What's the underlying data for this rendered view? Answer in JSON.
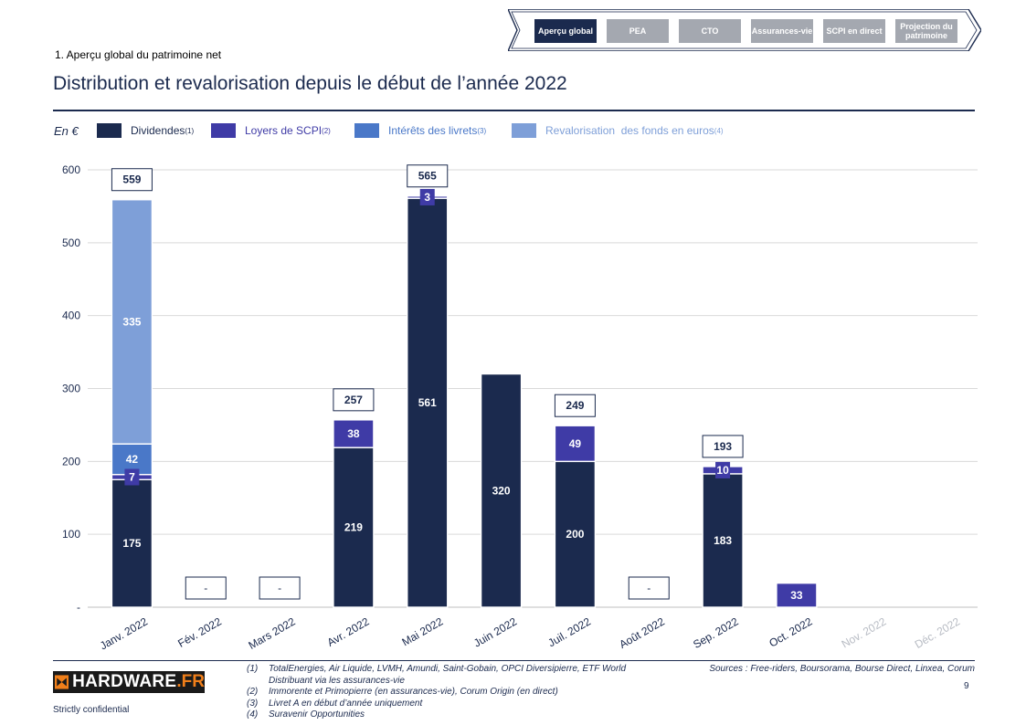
{
  "nav": {
    "tabs": [
      {
        "label": "Aperçu global",
        "active": true
      },
      {
        "label": "PEA",
        "active": false
      },
      {
        "label": "CTO",
        "active": false
      },
      {
        "label": "Assurances-vie",
        "active": false
      },
      {
        "label": "SCPI en direct",
        "active": false
      },
      {
        "label": "Projection du patrimoine",
        "active": false
      }
    ]
  },
  "header": {
    "section": "1. Aperçu global du patrimoine net",
    "title": "Distribution et revalorisation depuis le début de l’année 2022",
    "unit": "En €"
  },
  "legend": [
    {
      "label": "Dividendes",
      "note": "(1)",
      "color": "#1b2a4e"
    },
    {
      "label": "Loyers de SCPI",
      "note": "(2)",
      "color": "#3f3ba6"
    },
    {
      "label": "Intérêts des livrets",
      "note": "(3)",
      "color": "#4a78c8"
    },
    {
      "label": "Revalorisation  des fonds en euros",
      "note": "(4)",
      "color": "#7e9fd8"
    }
  ],
  "chart_data": {
    "type": "stacked-bar",
    "title": "Distribution et revalorisation depuis le début de l’année 2022",
    "ylabel": "En €",
    "ylim": [
      0,
      600
    ],
    "yticks": [
      0,
      100,
      200,
      300,
      400,
      500,
      600
    ],
    "ytick_labels": [
      "-",
      "100",
      "200",
      "300",
      "400",
      "500",
      "600"
    ],
    "categories": [
      "Janv. 2022",
      "Fév. 2022",
      "Mars 2022",
      "Avr. 2022",
      "Mai 2022",
      "Juin 2022",
      "Juil. 2022",
      "Août 2022",
      "Sep. 2022",
      "Oct. 2022",
      "Nov. 2022",
      "Déc. 2022"
    ],
    "series": [
      {
        "name": "Dividendes",
        "values": [
          175,
          0,
          0,
          219,
          561,
          320,
          200,
          0,
          183,
          0,
          0,
          0
        ]
      },
      {
        "name": "Loyers de SCPI",
        "values": [
          7,
          0,
          0,
          38,
          3,
          0,
          49,
          0,
          10,
          33,
          0,
          0
        ]
      },
      {
        "name": "Intérêts des livrets",
        "values": [
          42,
          0,
          0,
          0,
          0,
          0,
          0,
          0,
          0,
          0,
          0,
          0
        ]
      },
      {
        "name": "Revalorisation des fonds en euros",
        "values": [
          335,
          0,
          0,
          0,
          0,
          0,
          0,
          0,
          0,
          0,
          0,
          0
        ]
      }
    ],
    "totals": [
      "559",
      "-",
      "-",
      "257",
      "565",
      "",
      "249",
      "-",
      "193",
      "",
      "",
      ""
    ],
    "future_months": [
      10,
      11
    ]
  },
  "footnotes": [
    {
      "num": "(1)",
      "text": "TotalEnergies, Air Liquide, LVMH, Amundi, Saint-Gobain, OPCI Diversipierre, ETF World Distribuant via les assurances-vie"
    },
    {
      "num": "(2)",
      "text": "Immorente et Primopierre (en assurances-vie), Corum Origin (en direct)"
    },
    {
      "num": "(3)",
      "text": "Livret A en début d’année uniquement"
    },
    {
      "num": "(4)",
      "text": "Suravenir Opportunities"
    }
  ],
  "sources": "Sources : Free-riders, Boursorama, Bourse Direct, Linxea, Corum",
  "page_number": "9",
  "confidential": "Strictly confidential",
  "logo": {
    "name": "HARDWARE",
    "ext": ".FR"
  }
}
